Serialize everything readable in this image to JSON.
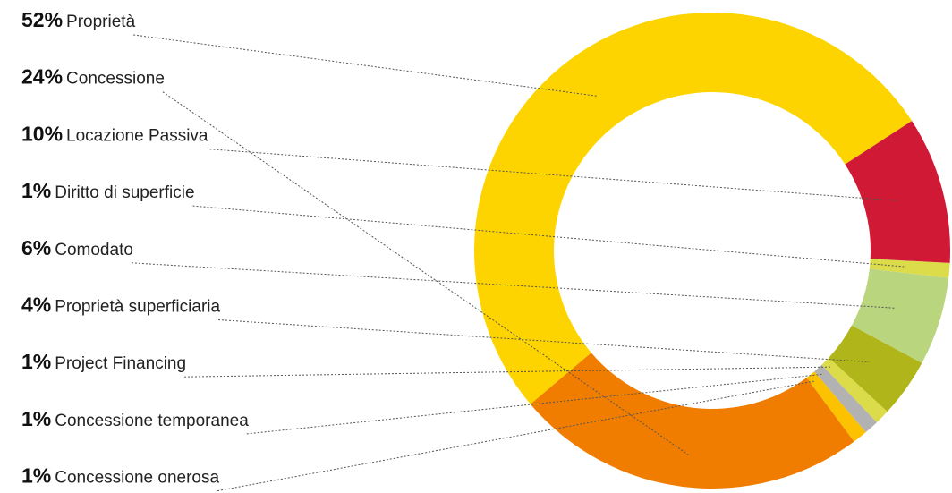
{
  "chart_data": {
    "type": "donut",
    "categories": [
      "Proprietà",
      "Concessione",
      "Locazione Passiva",
      "Diritto di superficie",
      "Comodato",
      "Proprietà superficiaria",
      "Project Financing",
      "Concessione temporanea",
      "Concessione onerosa"
    ],
    "values": [
      52,
      24,
      10,
      1,
      6,
      4,
      1,
      1,
      1
    ],
    "value_labels": [
      "52%",
      "24%",
      "10%",
      "1%",
      "6%",
      "4%",
      "1%",
      "1%",
      "1%"
    ],
    "colors": [
      "#fdd400",
      "#f07d00",
      "#d01934",
      "#dcdb4a",
      "#b9d67f",
      "#b0b61a",
      "#dcdb4a",
      "#b2b2b2",
      "#fcc200"
    ]
  }
}
